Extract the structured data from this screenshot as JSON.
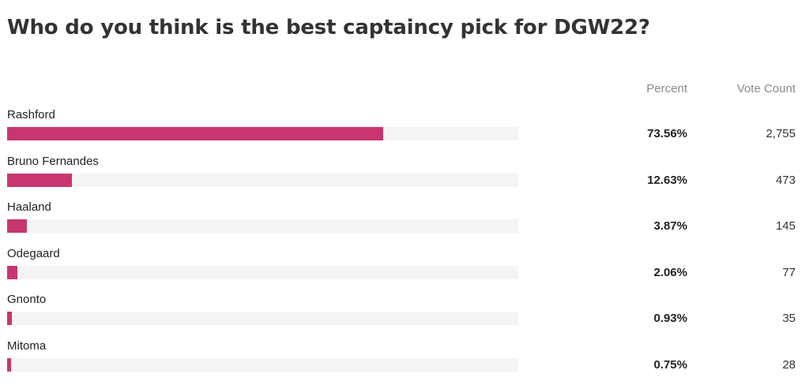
{
  "title": "Who do you think is the best captaincy pick for DGW22?",
  "headers": {
    "percent": "Percent",
    "vote_count": "Vote Count"
  },
  "colors": {
    "bar": "#c8366f",
    "track": "#f4f4f4"
  },
  "chart_data": {
    "type": "bar",
    "orientation": "horizontal",
    "title": "Who do you think is the best captaincy pick for DGW22?",
    "categories": [
      "Rashford",
      "Bruno Fernandes",
      "Haaland",
      "Odegaard",
      "Gnonto",
      "Mitoma"
    ],
    "values": [
      73.56,
      12.63,
      3.87,
      2.06,
      0.93,
      0.75
    ],
    "percent_labels": [
      "73.56%",
      "12.63%",
      "3.87%",
      "2.06%",
      "0.93%",
      "0.75%"
    ],
    "vote_counts": [
      "2,755",
      "473",
      "145",
      "77",
      "35",
      "28"
    ],
    "xlim": [
      0,
      100
    ]
  }
}
